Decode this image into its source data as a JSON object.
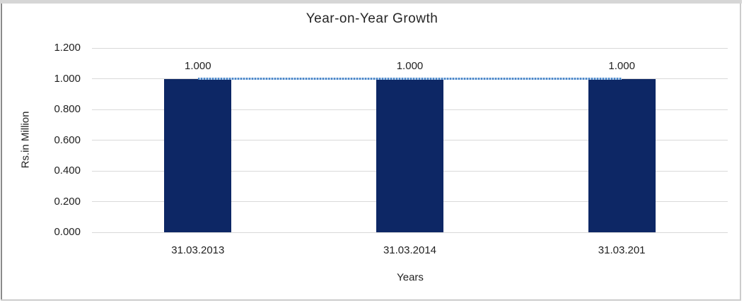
{
  "chart_data": {
    "type": "bar",
    "title": "Year-on-Year Growth",
    "xlabel": "Years",
    "ylabel": "Rs.in Million",
    "categories": [
      "31.03.2013",
      "31.03.2014",
      "31.03.201"
    ],
    "series": [
      {
        "name": "bar-series",
        "type": "bar",
        "values": [
          1.0,
          1.0,
          1.0
        ],
        "color": "#0d2765"
      },
      {
        "name": "trend-line-series",
        "type": "line",
        "line_style": "dotted",
        "values": [
          1.0,
          1.0,
          1.0
        ],
        "color": "#4b87c8",
        "dot_gap_color": "#b7cfeb"
      }
    ],
    "data_labels": [
      "1.000",
      "1.000",
      "1.000"
    ],
    "yticks": [
      "1.200",
      "1.000",
      "0.800",
      "0.600",
      "0.400",
      "0.200",
      "0.000"
    ],
    "ylim": [
      0,
      1.2
    ],
    "grid": true,
    "gridline_color": "#d9d9d9",
    "legend": "none"
  },
  "frame": {
    "top_color": "#d6d6d6",
    "left_color": "#8a8a8a",
    "right_color": "#cccccc",
    "bottom_color": "#cccccc"
  }
}
